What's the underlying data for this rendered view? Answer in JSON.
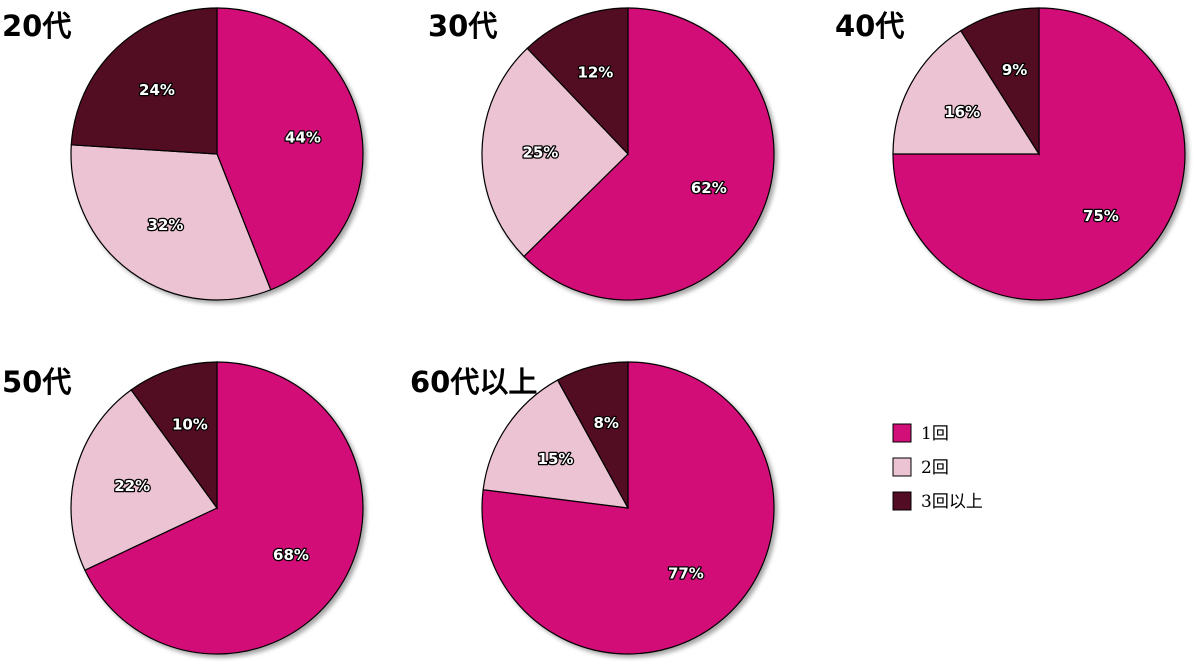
{
  "chart_data": [
    {
      "type": "pie",
      "title": "20代",
      "series": [
        {
          "name": "1回",
          "value": 44,
          "label": "44%"
        },
        {
          "name": "2回",
          "value": 32,
          "label": "32%"
        },
        {
          "name": "3回以上",
          "value": 24,
          "label": "24%"
        }
      ]
    },
    {
      "type": "pie",
      "title": "30代",
      "series": [
        {
          "name": "1回",
          "value": 62,
          "label": "62%"
        },
        {
          "name": "2回",
          "value": 25,
          "label": "25%"
        },
        {
          "name": "3回以上",
          "value": 12,
          "label": "12%"
        }
      ]
    },
    {
      "type": "pie",
      "title": "40代",
      "series": [
        {
          "name": "1回",
          "value": 75,
          "label": "75%"
        },
        {
          "name": "2回",
          "value": 16,
          "label": "16%"
        },
        {
          "name": "3回以上",
          "value": 9,
          "label": "9%"
        }
      ]
    },
    {
      "type": "pie",
      "title": "50代",
      "series": [
        {
          "name": "1回",
          "value": 68,
          "label": "68%"
        },
        {
          "name": "2回",
          "value": 22,
          "label": "22%"
        },
        {
          "name": "3回以上",
          "value": 10,
          "label": "10%"
        }
      ]
    },
    {
      "type": "pie",
      "title": "60代以上",
      "series": [
        {
          "name": "1回",
          "value": 77,
          "label": "77%"
        },
        {
          "name": "2回",
          "value": 15,
          "label": "15%"
        },
        {
          "name": "3回以上",
          "value": 8,
          "label": "8%"
        }
      ]
    }
  ],
  "legend": {
    "placement": "right",
    "items": [
      {
        "label": "1回",
        "color": "#D20F78"
      },
      {
        "label": "2回",
        "color": "#EBC3D3"
      },
      {
        "label": "3回以上",
        "color": "#520C24"
      }
    ]
  }
}
